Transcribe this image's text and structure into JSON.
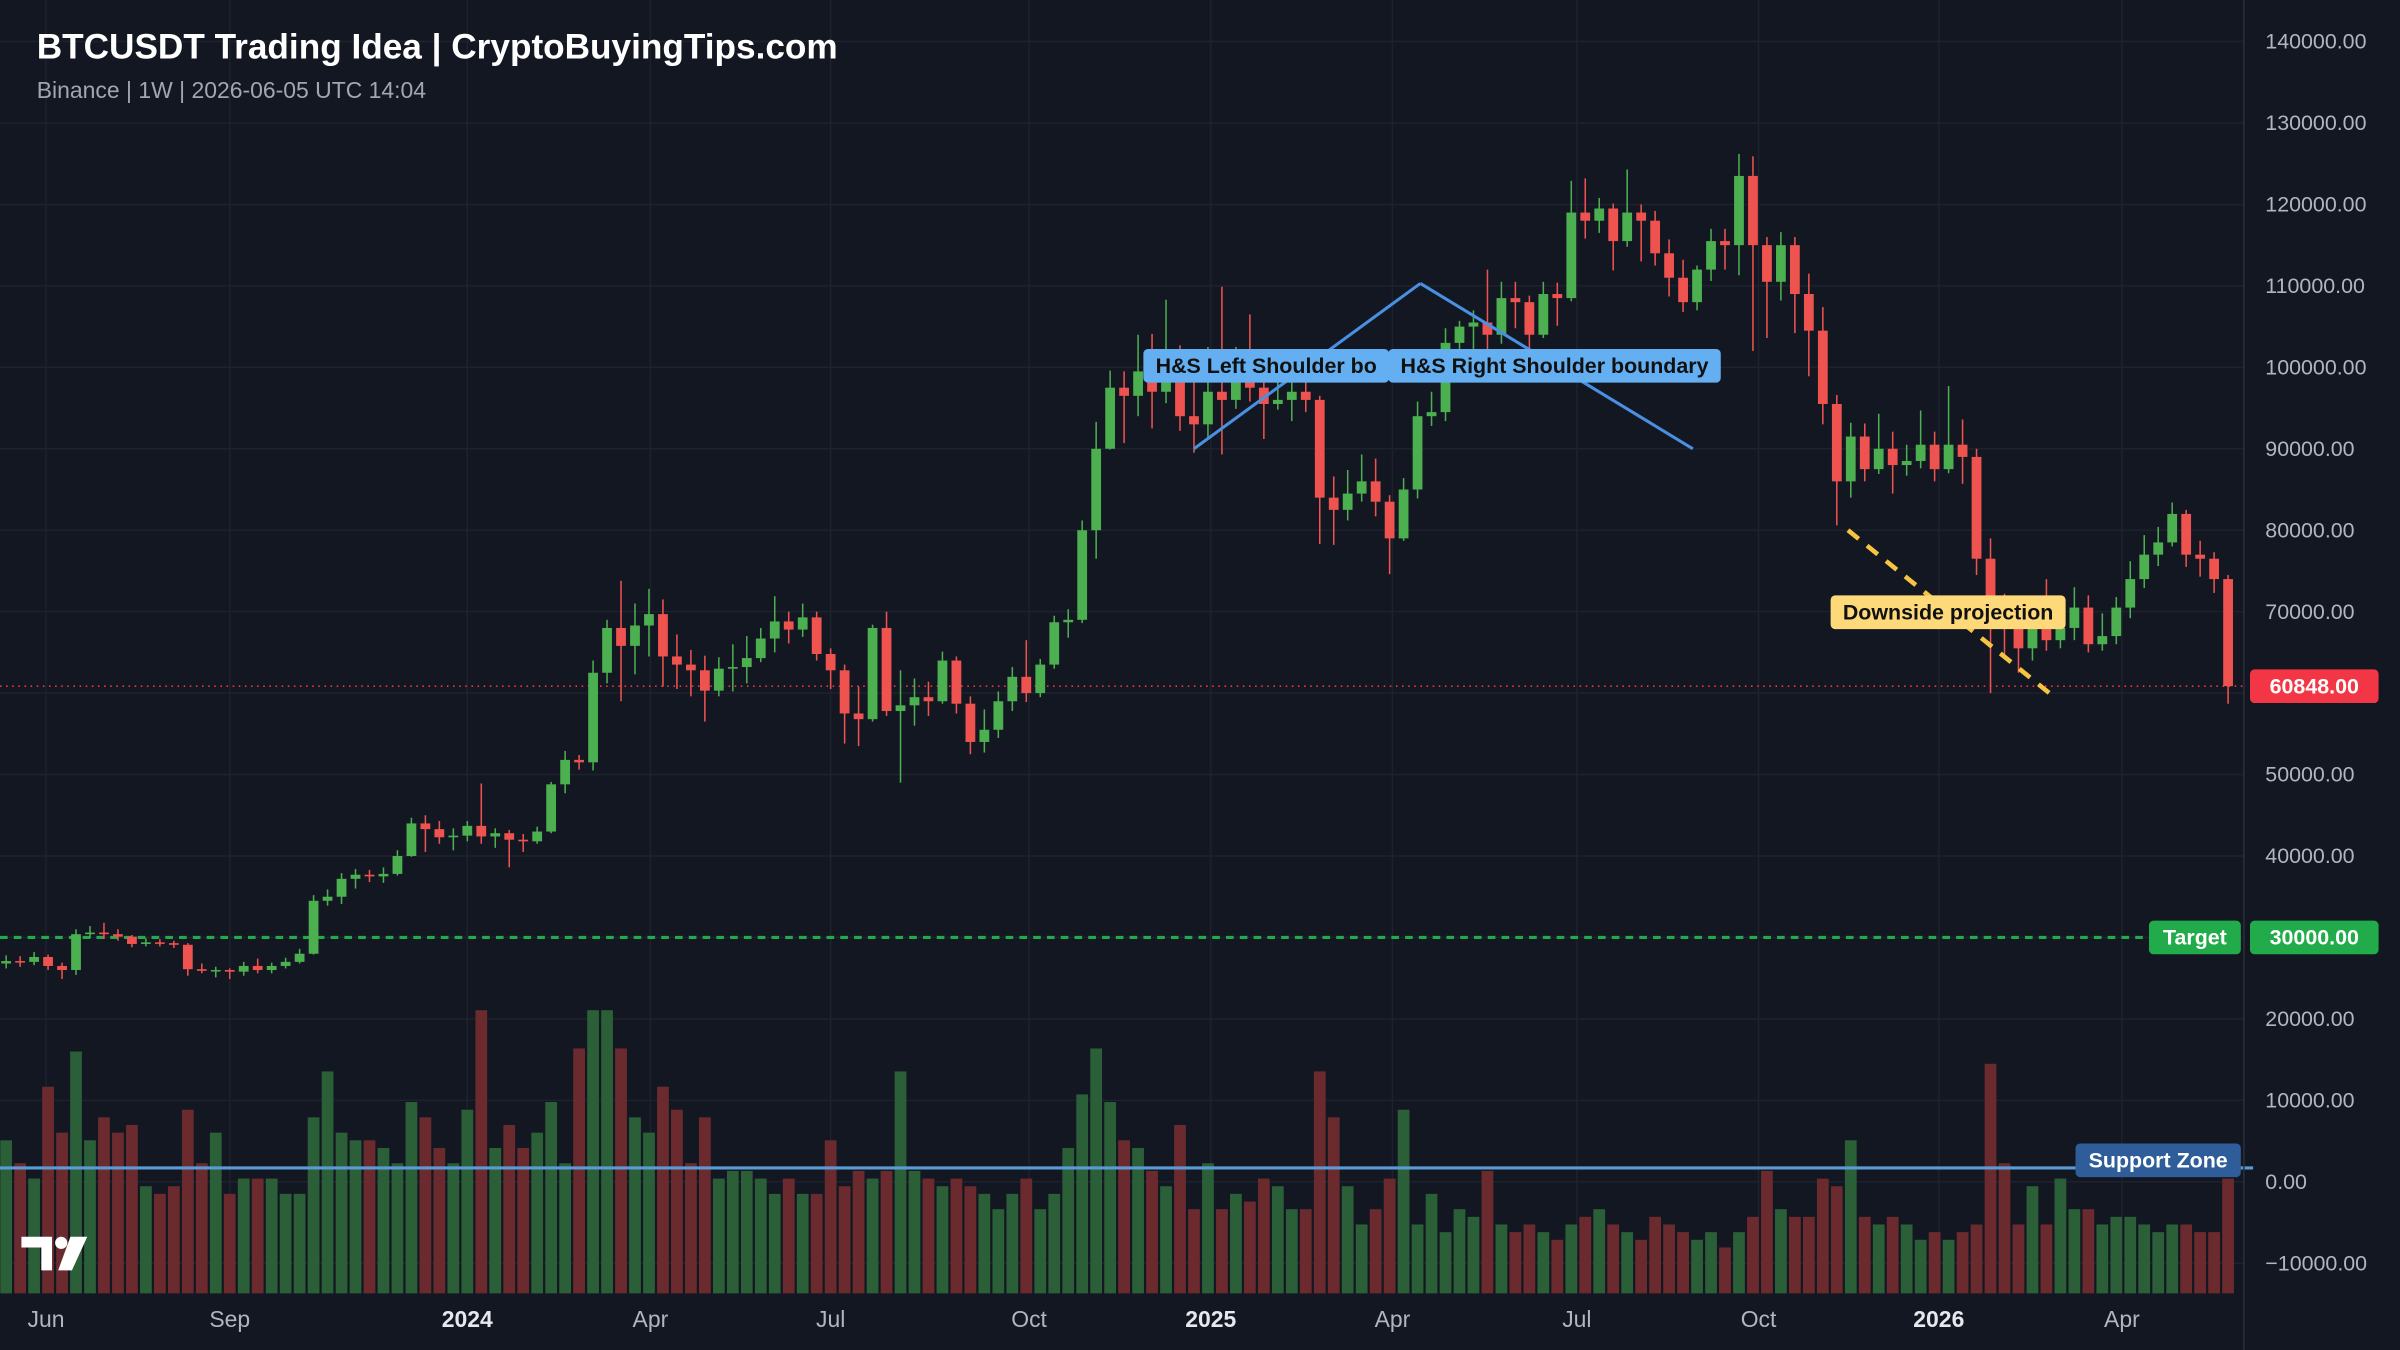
{
  "chart_data": {
    "type": "candlestick",
    "title": "BTCUSDT Trading Idea | CryptoBuyingTips.com",
    "subtitle": "Binance | 1W | 2026-06-05 UTC 14:04",
    "up_color": "#4caf50",
    "down_color": "#ef5350",
    "volume_up_color": "#2b5f38",
    "volume_down_color": "#6b2b2e",
    "grid": true,
    "xlim": [
      -0.44,
      160.13
    ],
    "ylim": [
      -13700,
      145100
    ],
    "xticks": [
      {
        "value": 2.85,
        "label": "Jun"
      },
      {
        "value": 16,
        "label": "Sep"
      },
      {
        "value": 33,
        "label": "2024"
      },
      {
        "value": 46.1,
        "label": "Apr"
      },
      {
        "value": 59,
        "label": "Jul"
      },
      {
        "value": 73.2,
        "label": "Oct"
      },
      {
        "value": 86.2,
        "label": "2025"
      },
      {
        "value": 99.2,
        "label": "Apr"
      },
      {
        "value": 112.4,
        "label": "Jul"
      },
      {
        "value": 125.4,
        "label": "Oct"
      },
      {
        "value": 138.3,
        "label": "2026"
      },
      {
        "value": 151.4,
        "label": "Apr"
      }
    ],
    "yticks": [
      {
        "value": -10000,
        "label": "−10000.00"
      },
      {
        "value": 0,
        "label": "0.00"
      },
      {
        "value": 10000,
        "label": "10000.00"
      },
      {
        "value": 20000,
        "label": "20000.00"
      },
      {
        "value": 30000,
        "label": "30000.00"
      },
      {
        "value": 40000,
        "label": "40000.00"
      },
      {
        "value": 50000,
        "label": "50000.00"
      },
      {
        "value": 60000,
        "label": "60000.00"
      },
      {
        "value": 70000,
        "label": "70000.00"
      },
      {
        "value": 80000,
        "label": "80000.00"
      },
      {
        "value": 90000,
        "label": "90000.00"
      },
      {
        "value": 100000,
        "label": "100000.00"
      },
      {
        "value": 110000,
        "label": "110000.00"
      },
      {
        "value": 120000,
        "label": "120000.00"
      },
      {
        "value": 130000,
        "label": "130000.00"
      },
      {
        "value": 140000,
        "label": "140000.00"
      }
    ],
    "last_price": {
      "value": 60848,
      "label": "60848.00",
      "color": "#f23645"
    },
    "target": {
      "value": 30000,
      "label": "Target",
      "price_label": "30000.00",
      "color": "#22ab4a"
    },
    "support": {
      "value": 1700,
      "label": "Support Zone",
      "color": "#5b9bd5",
      "box_color": "#2f5d9a"
    },
    "annotations": [
      {
        "label": "H&S Left Shoulder bo",
        "points": [
          [
            85,
            90000
          ],
          [
            101.2,
            110300
          ]
        ],
        "color": "#4a90e2",
        "box_color": "#64aef2"
      },
      {
        "label": "H&S Right Shoulder boundary",
        "points": [
          [
            101.2,
            110300
          ],
          [
            120.7,
            90000
          ]
        ],
        "color": "#4a90e2",
        "box_color": "#64aef2"
      },
      {
        "label": "Downside projection",
        "points": [
          [
            131.8,
            80000
          ],
          [
            146.5,
            59600
          ]
        ],
        "color": "#f5c542",
        "box_color": "#fdd97a",
        "dashed": true
      }
    ],
    "candles": [
      [
        26800,
        27800,
        26200,
        27100,
        100
      ],
      [
        27100,
        27700,
        26400,
        27000,
        85
      ],
      [
        27000,
        28200,
        26600,
        27600,
        75
      ],
      [
        27600,
        27900,
        26000,
        26500,
        135
      ],
      [
        26500,
        26900,
        24900,
        26000,
        105
      ],
      [
        26000,
        31000,
        25400,
        30400,
        158
      ],
      [
        30400,
        31400,
        29900,
        30600,
        100
      ],
      [
        30600,
        31800,
        29800,
        30400,
        115
      ],
      [
        30400,
        31000,
        29600,
        30100,
        105
      ],
      [
        30100,
        30300,
        28800,
        29200,
        110
      ],
      [
        29200,
        29900,
        28900,
        29400,
        70
      ],
      [
        29400,
        29800,
        28900,
        29300,
        65
      ],
      [
        29300,
        29600,
        28700,
        29100,
        70
      ],
      [
        29100,
        29300,
        25300,
        26100,
        120
      ],
      [
        26100,
        26800,
        25600,
        25900,
        85
      ],
      [
        25900,
        26400,
        25100,
        26000,
        105
      ],
      [
        26000,
        26200,
        24900,
        25800,
        65
      ],
      [
        25800,
        27000,
        25300,
        26500,
        75
      ],
      [
        26500,
        27400,
        25600,
        26000,
        75
      ],
      [
        26000,
        26900,
        25600,
        26500,
        75
      ],
      [
        26500,
        27500,
        26200,
        27000,
        65
      ],
      [
        27000,
        28600,
        26800,
        28000,
        65
      ],
      [
        28000,
        35200,
        27900,
        34500,
        115
      ],
      [
        34500,
        35900,
        33900,
        35000,
        145
      ],
      [
        35000,
        37900,
        34100,
        37200,
        105
      ],
      [
        37200,
        38400,
        36000,
        37700,
        100
      ],
      [
        37700,
        38300,
        36800,
        37500,
        100
      ],
      [
        37500,
        38600,
        36700,
        37800,
        95
      ],
      [
        37800,
        40700,
        37600,
        40000,
        85
      ],
      [
        40000,
        44700,
        39900,
        44000,
        125
      ],
      [
        44000,
        45000,
        40500,
        43300,
        115
      ],
      [
        43300,
        44300,
        41500,
        42300,
        95
      ],
      [
        42300,
        43400,
        40700,
        42500,
        85
      ],
      [
        42500,
        44300,
        41800,
        43700,
        120
      ],
      [
        43700,
        48900,
        41500,
        42400,
        185
      ],
      [
        42400,
        43400,
        41000,
        42800,
        95
      ],
      [
        42800,
        43200,
        38600,
        42000,
        110
      ],
      [
        42000,
        42700,
        40500,
        41800,
        95
      ],
      [
        41800,
        43600,
        41500,
        43000,
        105
      ],
      [
        43000,
        49100,
        42800,
        48800,
        125
      ],
      [
        48800,
        52900,
        47700,
        51800,
        85
      ],
      [
        51800,
        52400,
        50600,
        51500,
        160
      ],
      [
        51500,
        64000,
        50500,
        62500,
        185
      ],
      [
        62500,
        69000,
        61200,
        68000,
        185
      ],
      [
        68000,
        73800,
        59000,
        65800,
        160
      ],
      [
        65800,
        71000,
        62300,
        68300,
        115
      ],
      [
        68300,
        72800,
        64500,
        69700,
        105
      ],
      [
        69700,
        71500,
        60800,
        64500,
        135
      ],
      [
        64500,
        67200,
        60500,
        63500,
        120
      ],
      [
        63500,
        65300,
        59600,
        62800,
        85
      ],
      [
        62800,
        64600,
        56500,
        60300,
        115
      ],
      [
        60300,
        64400,
        59600,
        63000,
        75
      ],
      [
        63000,
        66000,
        60200,
        63200,
        80
      ],
      [
        63200,
        67000,
        61200,
        64300,
        80
      ],
      [
        64300,
        68000,
        63800,
        66700,
        75
      ],
      [
        66700,
        71900,
        65000,
        68800,
        65
      ],
      [
        68800,
        70000,
        66100,
        67800,
        75
      ],
      [
        67800,
        71000,
        66900,
        69300,
        65
      ],
      [
        69300,
        70000,
        64000,
        64800,
        65
      ],
      [
        64800,
        65500,
        60500,
        62800,
        100
      ],
      [
        62800,
        63500,
        53800,
        57500,
        70
      ],
      [
        57500,
        60800,
        53500,
        56800,
        80
      ],
      [
        56800,
        68400,
        56500,
        68000,
        75
      ],
      [
        68000,
        70000,
        57200,
        57800,
        80
      ],
      [
        57800,
        62800,
        49000,
        58500,
        145
      ],
      [
        58500,
        61800,
        56000,
        59500,
        80
      ],
      [
        59500,
        61400,
        57200,
        59000,
        75
      ],
      [
        59000,
        65100,
        58700,
        64000,
        70
      ],
      [
        64000,
        64500,
        57500,
        58700,
        75
      ],
      [
        58700,
        59600,
        52500,
        54000,
        70
      ],
      [
        54000,
        58000,
        52700,
        55500,
        65
      ],
      [
        55500,
        60200,
        54500,
        59000,
        55
      ],
      [
        59000,
        63200,
        57800,
        62000,
        65
      ],
      [
        62000,
        66500,
        58900,
        60000,
        75
      ],
      [
        60000,
        64200,
        59500,
        63500,
        55
      ],
      [
        63500,
        69500,
        63000,
        68700,
        65
      ],
      [
        68700,
        70300,
        66800,
        69000,
        95
      ],
      [
        69000,
        81200,
        68600,
        80000,
        130
      ],
      [
        80000,
        93300,
        76500,
        90000,
        160
      ],
      [
        90000,
        99600,
        89900,
        97500,
        125
      ],
      [
        97500,
        99500,
        90700,
        96500,
        100
      ],
      [
        96500,
        104000,
        94000,
        99500,
        95
      ],
      [
        99500,
        104100,
        92500,
        97000,
        80
      ],
      [
        97000,
        108300,
        95600,
        101000,
        70
      ],
      [
        101000,
        102700,
        92200,
        94000,
        110
      ],
      [
        94000,
        99500,
        89500,
        93000,
        55
      ],
      [
        93000,
        102500,
        91400,
        97000,
        85
      ],
      [
        97000,
        109900,
        89300,
        96000,
        55
      ],
      [
        96000,
        102500,
        94900,
        101000,
        65
      ],
      [
        101000,
        106500,
        95800,
        97500,
        60
      ],
      [
        97500,
        100300,
        91200,
        95500,
        75
      ],
      [
        95500,
        99500,
        94800,
        96000,
        70
      ],
      [
        96000,
        99200,
        93400,
        97000,
        55
      ],
      [
        97000,
        98700,
        94500,
        96000,
        55
      ],
      [
        96000,
        96500,
        78300,
        84000,
        145
      ],
      [
        84000,
        86600,
        78200,
        82500,
        115
      ],
      [
        82500,
        87400,
        81200,
        84500,
        70
      ],
      [
        84500,
        89300,
        83500,
        86000,
        45
      ],
      [
        86000,
        88800,
        81700,
        83500,
        55
      ],
      [
        83500,
        84300,
        74600,
        79000,
        75
      ],
      [
        79000,
        86400,
        78700,
        85000,
        120
      ],
      [
        85000,
        95800,
        83900,
        94000,
        45
      ],
      [
        94000,
        97000,
        92800,
        94500,
        65
      ],
      [
        94500,
        104800,
        93400,
        103000,
        40
      ],
      [
        103000,
        105700,
        100700,
        105000,
        55
      ],
      [
        105000,
        107000,
        101400,
        105500,
        50
      ],
      [
        105500,
        112000,
        100500,
        104000,
        80
      ],
      [
        104000,
        110500,
        102900,
        108500,
        45
      ],
      [
        108500,
        110500,
        104800,
        108000,
        40
      ],
      [
        108000,
        108800,
        98200,
        104000,
        45
      ],
      [
        104000,
        110500,
        103600,
        109000,
        40
      ],
      [
        109000,
        110400,
        105100,
        108500,
        35
      ],
      [
        108500,
        122900,
        108100,
        119000,
        45
      ],
      [
        119000,
        123200,
        115800,
        118000,
        50
      ],
      [
        118000,
        120800,
        116500,
        119500,
        55
      ],
      [
        119500,
        120100,
        111900,
        115500,
        45
      ],
      [
        115500,
        124300,
        114800,
        119000,
        40
      ],
      [
        119000,
        120000,
        113000,
        118000,
        35
      ],
      [
        118000,
        119200,
        112500,
        114000,
        50
      ],
      [
        114000,
        115700,
        108700,
        111000,
        45
      ],
      [
        111000,
        113200,
        106800,
        108000,
        40
      ],
      [
        108000,
        112500,
        107000,
        112000,
        35
      ],
      [
        112000,
        117000,
        110600,
        115500,
        40
      ],
      [
        115500,
        117000,
        112000,
        115000,
        30
      ],
      [
        115000,
        126200,
        111300,
        123500,
        40
      ],
      [
        123500,
        125900,
        102000,
        115000,
        50
      ],
      [
        115000,
        116000,
        103600,
        110500,
        80
      ],
      [
        110500,
        116600,
        108200,
        115000,
        55
      ],
      [
        115000,
        116000,
        104200,
        109000,
        50
      ],
      [
        109000,
        111500,
        98900,
        104500,
        50
      ],
      [
        104500,
        107400,
        93000,
        95500,
        75
      ],
      [
        95500,
        96600,
        80600,
        86000,
        70
      ],
      [
        86000,
        93200,
        84000,
        91500,
        100
      ],
      [
        91500,
        93100,
        86000,
        87500,
        50
      ],
      [
        87500,
        94300,
        86900,
        90000,
        45
      ],
      [
        90000,
        92100,
        84500,
        88000,
        50
      ],
      [
        88000,
        90500,
        86700,
        88500,
        45
      ],
      [
        88500,
        94700,
        87600,
        90500,
        35
      ],
      [
        90500,
        92100,
        86000,
        87500,
        40
      ],
      [
        87500,
        97700,
        87000,
        90500,
        35
      ],
      [
        90500,
        93600,
        85700,
        89000,
        40
      ],
      [
        89000,
        90000,
        74500,
        76500,
        45
      ],
      [
        76500,
        79000,
        60000,
        70500,
        150
      ],
      [
        70500,
        72200,
        64200,
        68500,
        85
      ],
      [
        68500,
        71000,
        62500,
        65500,
        45
      ],
      [
        65500,
        70600,
        64000,
        68500,
        70
      ],
      [
        68500,
        74000,
        65200,
        66500,
        45
      ],
      [
        66500,
        71000,
        65500,
        68000,
        75
      ],
      [
        68000,
        73000,
        66500,
        70500,
        55
      ],
      [
        70500,
        72000,
        65000,
        66000,
        55
      ],
      [
        66000,
        69800,
        65200,
        67000,
        45
      ],
      [
        67000,
        71800,
        66000,
        70500,
        50
      ],
      [
        70500,
        76200,
        69200,
        74000,
        50
      ],
      [
        74000,
        79400,
        72900,
        77000,
        45
      ],
      [
        77000,
        80400,
        75600,
        78500,
        40
      ],
      [
        78500,
        83400,
        78000,
        82000,
        45
      ],
      [
        82000,
        82500,
        75500,
        77000,
        45
      ],
      [
        77000,
        78700,
        74300,
        76500,
        40
      ],
      [
        76500,
        77300,
        72300,
        74000,
        40
      ],
      [
        74000,
        74500,
        58700,
        60848,
        75
      ]
    ]
  }
}
